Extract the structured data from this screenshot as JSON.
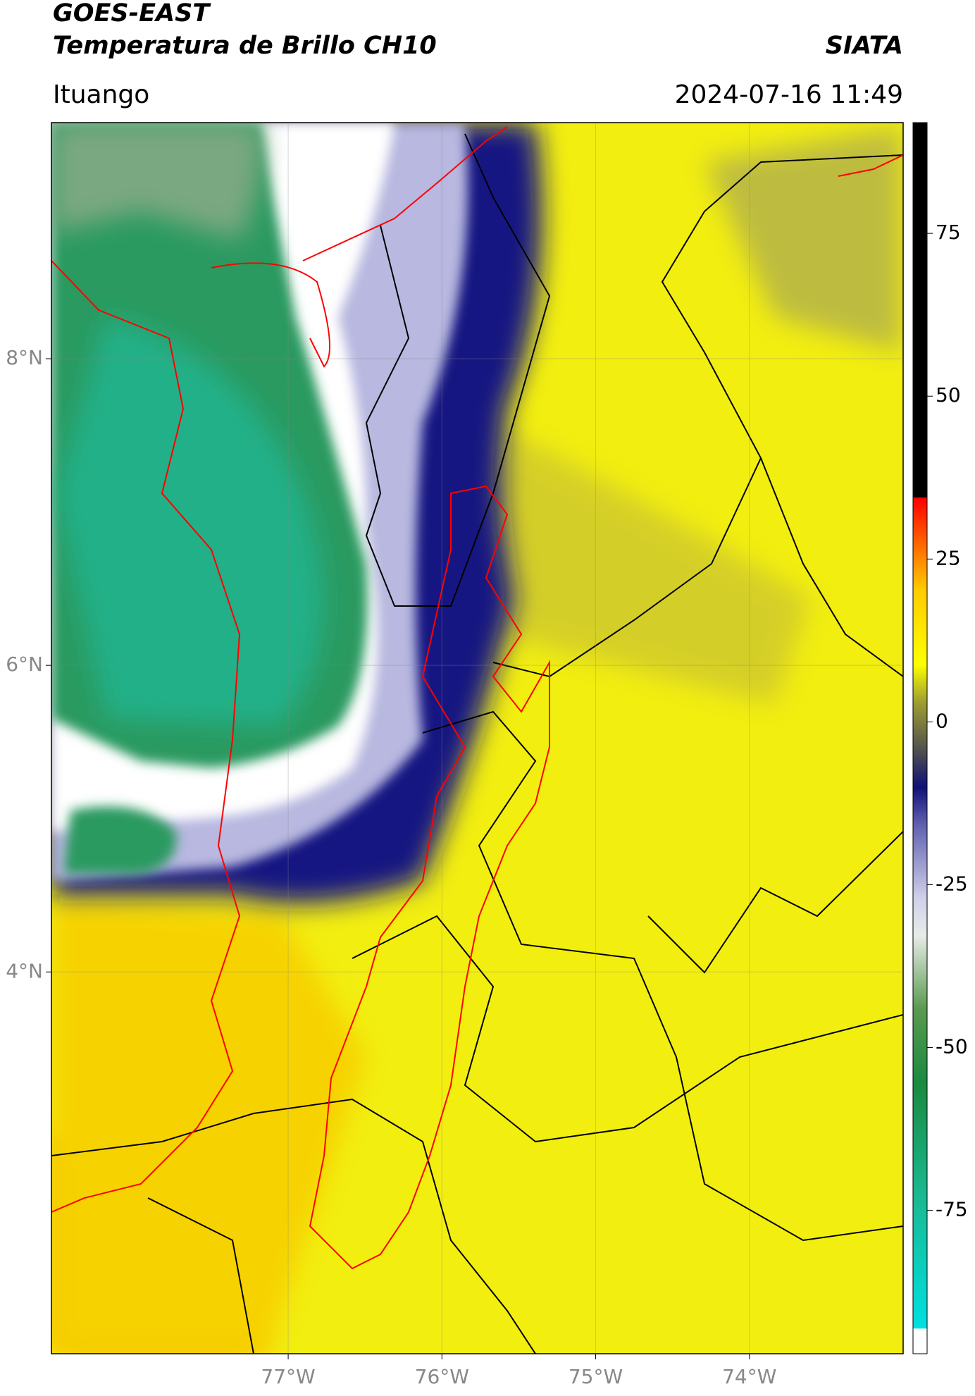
{
  "header": {
    "title_line1": "GOES-EAST",
    "title_line2": "Temperatura de Brillo CH10",
    "brand": "SIATA",
    "location": "Ituango",
    "timestamp": "2024-07-16 11:49"
  },
  "map": {
    "lonlim": [
      -78.54,
      -73.0
    ],
    "latlim": [
      1.51,
      9.54
    ],
    "xticks": [
      {
        "value": -77,
        "label": "77°W"
      },
      {
        "value": -76,
        "label": "76°W"
      },
      {
        "value": -75,
        "label": "75°W"
      },
      {
        "value": -74,
        "label": "74°W"
      }
    ],
    "yticks": [
      {
        "value": 8,
        "label": "8°N"
      },
      {
        "value": 6,
        "label": "6°N"
      },
      {
        "value": 4,
        "label": "4°N"
      }
    ]
  },
  "colorbar": {
    "lim": [
      -97,
      92
    ],
    "ticks": [
      75,
      50,
      25,
      0,
      -25,
      -50,
      -75
    ]
  }
}
